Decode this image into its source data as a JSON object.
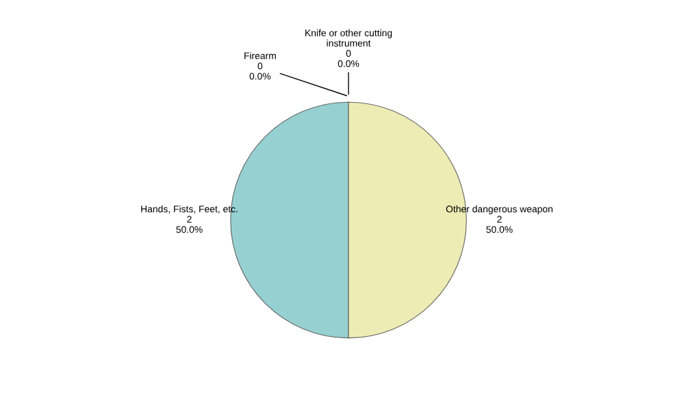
{
  "chart_data": {
    "type": "pie",
    "categories": [
      "Knife or other cutting\ninstrument",
      "Hands, Fists, Feet, etc.",
      "Other dangerous weapon",
      "Firearm"
    ],
    "values": [
      0,
      2,
      2,
      0
    ],
    "value_labels": [
      "0\n0.0%",
      "2\n50.0%",
      "2\n50.0%",
      "0\n0.0%"
    ],
    "colors": [
      "#9aa0c8",
      "#96d0d0",
      "#ececb4",
      "#d09696"
    ],
    "legend": false
  }
}
